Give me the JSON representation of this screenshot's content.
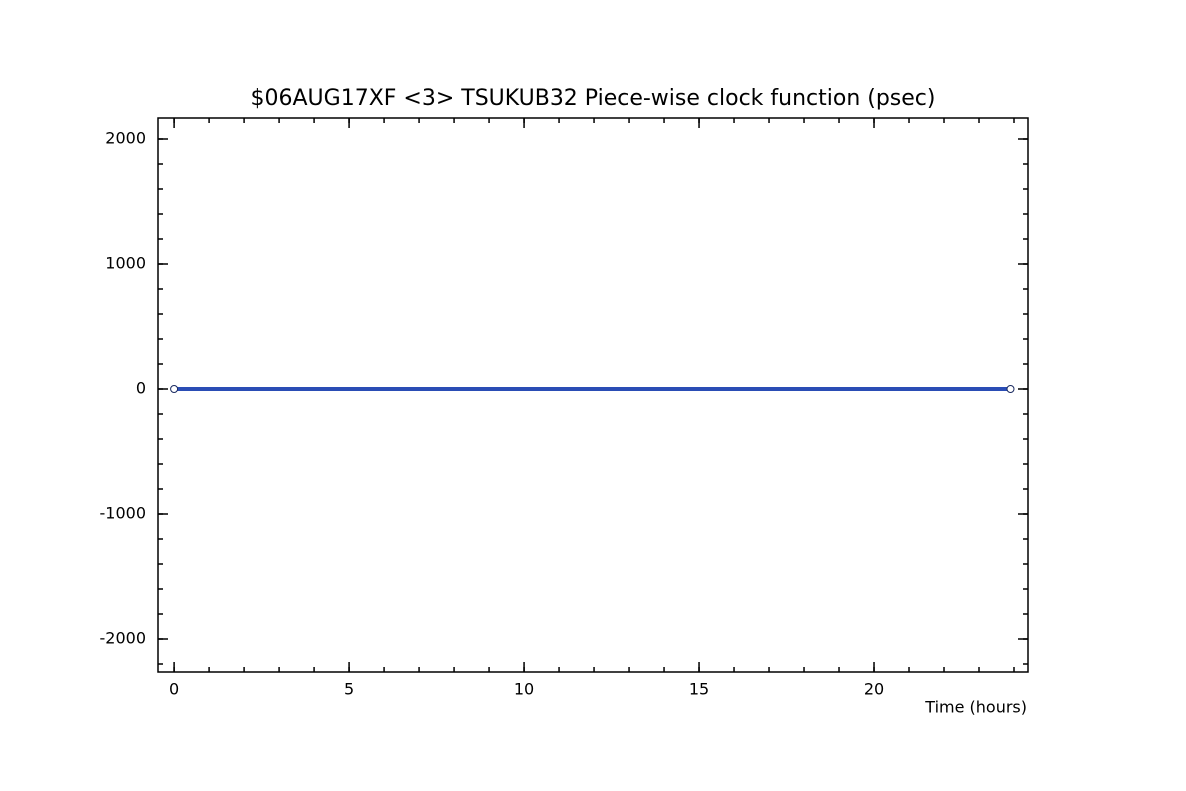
{
  "chart_data": {
    "type": "line",
    "title": "$06AUG17XF <3>  TSUKUB32  Piece-wise clock function (psec)",
    "x_label": "Time (hours)",
    "x": [
      0,
      23.9
    ],
    "series": [
      {
        "color": "#2a4db5",
        "values": [
          0,
          0
        ]
      }
    ],
    "xlim": [
      -0.46,
      24.4
    ],
    "xticks": [
      0,
      5,
      10,
      15,
      20
    ],
    "ylim": [
      -2264,
      2168
    ],
    "yticks": [
      -2000,
      -1000,
      0,
      1000,
      2000
    ],
    "grid": false
  }
}
